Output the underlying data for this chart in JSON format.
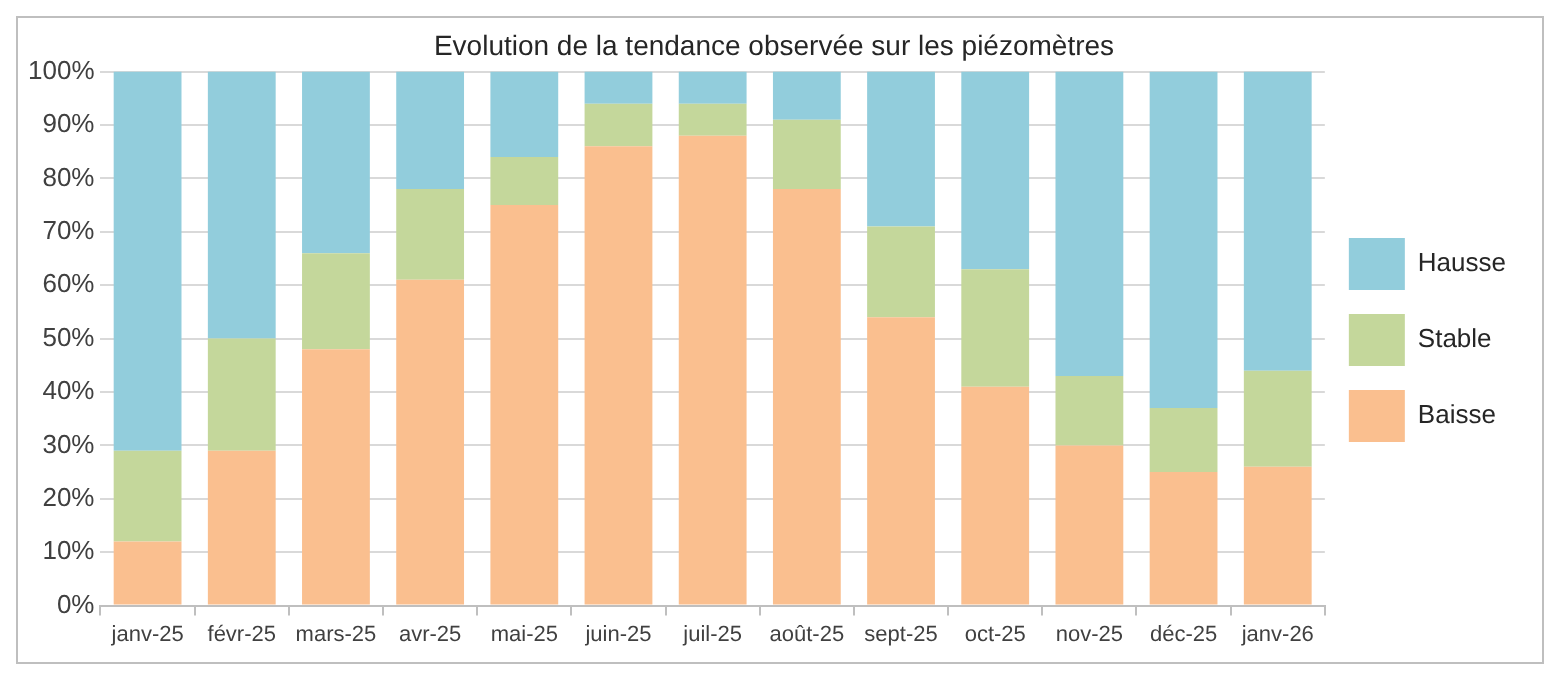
{
  "chart_data": {
    "type": "bar",
    "title": "Evolution de la tendance observée sur les piézomètres",
    "categories": [
      "janv-25",
      "févr-25",
      "mars-25",
      "avr-25",
      "mai-25",
      "juin-25",
      "juil-25",
      "août-25",
      "sept-25",
      "oct-25",
      "nov-25",
      "déc-25",
      "janv-26"
    ],
    "series": [
      {
        "name": "Baisse",
        "color": "#fabf8f",
        "values": [
          12,
          29,
          48,
          61,
          75,
          86,
          88,
          78,
          54,
          41,
          30,
          25,
          26
        ]
      },
      {
        "name": "Stable",
        "color": "#c4d79b",
        "values": [
          17,
          21,
          18,
          17,
          9,
          8,
          6,
          13,
          17,
          22,
          13,
          12,
          18
        ]
      },
      {
        "name": "Hausse",
        "color": "#92cddc",
        "values": [
          71,
          50,
          34,
          22,
          16,
          6,
          6,
          9,
          29,
          37,
          57,
          63,
          56
        ]
      }
    ],
    "stacked": true,
    "ylim": [
      0,
      100
    ],
    "yticks": [
      {
        "value": 0,
        "label": "0%"
      },
      {
        "value": 10,
        "label": "10%"
      },
      {
        "value": 20,
        "label": "20%"
      },
      {
        "value": 30,
        "label": "30%"
      },
      {
        "value": 40,
        "label": "40%"
      },
      {
        "value": 50,
        "label": "50%"
      },
      {
        "value": 60,
        "label": "60%"
      },
      {
        "value": 70,
        "label": "70%"
      },
      {
        "value": 80,
        "label": "80%"
      },
      {
        "value": 90,
        "label": "90%"
      },
      {
        "value": 100,
        "label": "100%"
      }
    ],
    "grid": "y",
    "legend": "right"
  }
}
